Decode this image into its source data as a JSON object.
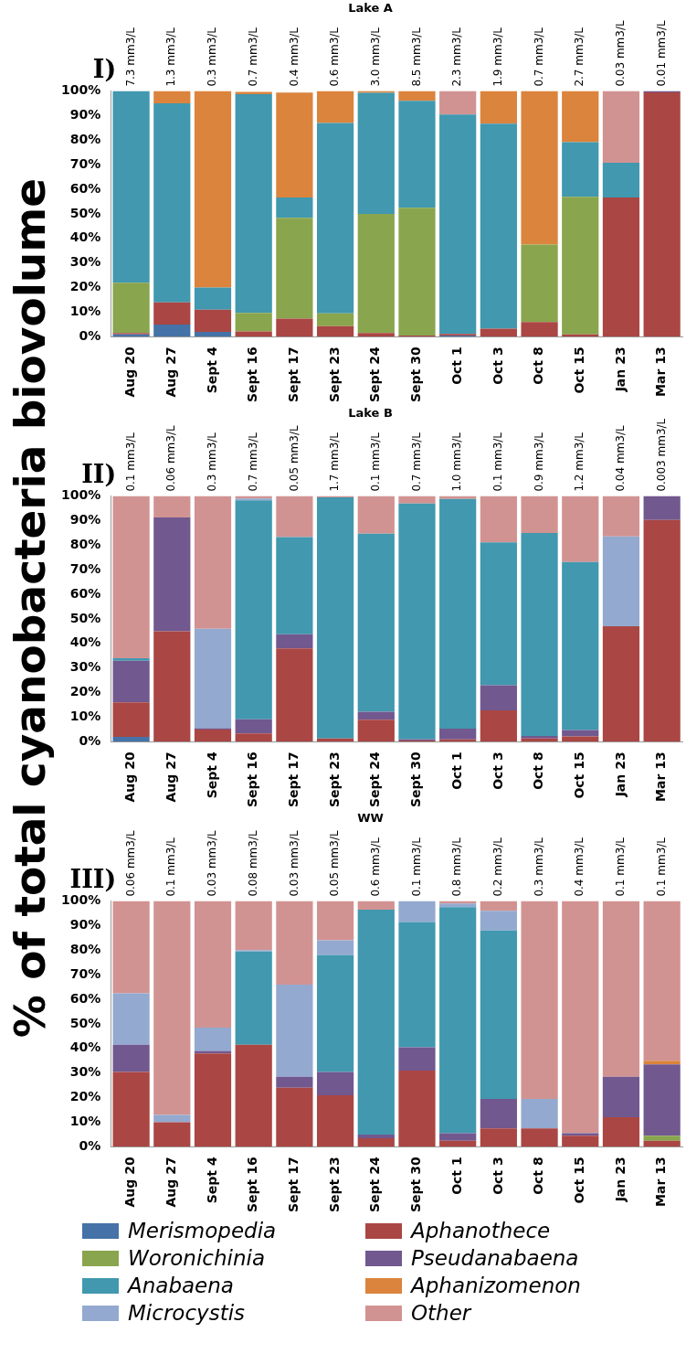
{
  "chart_data": [
    {
      "type": "bar",
      "title": "Lake A",
      "stacked": true,
      "legend": false,
      "categories": [
        "Aug 20",
        "Aug 27",
        "Sept 4",
        "Sept 16",
        "Sept 17",
        "Sept 23",
        "Sept 24",
        "Sept 30",
        "Oct 1",
        "Oct 3",
        "Oct 8",
        "Oct 15",
        "Jan 23",
        "Mar 13"
      ],
      "ylim": [
        0,
        100
      ],
      "yticks": [
        {
          "value": 0,
          "label": "0%"
        },
        {
          "value": 10,
          "label": "10%"
        },
        {
          "value": 20,
          "label": "20%"
        },
        {
          "value": 30,
          "label": "30%"
        },
        {
          "value": 40,
          "label": "40%"
        },
        {
          "value": 50,
          "label": "50%"
        },
        {
          "value": 60,
          "label": "60%"
        },
        {
          "value": 70,
          "label": "70%"
        },
        {
          "value": 80,
          "label": "80%"
        },
        {
          "value": 90,
          "label": "90%"
        },
        {
          "value": 100,
          "label": "100%"
        }
      ],
      "annotations": [
        "I)"
      ],
      "totals": [
        "7.3 mm3/L",
        "1.3 mm3/L",
        "0.3 mm3/L",
        "0.7 mm3/L",
        "0.4 mm3/L",
        "0.6 mm3/L",
        "3.0 mm3/L",
        "8.5 mm3/L",
        "2.3 mm3/L",
        "1.9 mm3/L",
        "0.7 mm3/L",
        "2.7 mm3/L",
        "0.03 mm3/L",
        "0.01 mm3/L"
      ],
      "series": [
        {
          "color": "#4572a7",
          "values": [
            1,
            5,
            2,
            null,
            null,
            0,
            0,
            0,
            0.5,
            0,
            0,
            0,
            0,
            0
          ]
        },
        {
          "color": "#aa4643",
          "values": [
            0.5,
            9,
            9,
            2.2,
            7.4,
            4.3,
            1.5,
            0.5,
            0.7,
            3.3,
            6,
            1,
            56.7,
            99.5
          ]
        },
        {
          "color": "#89a54e",
          "values": [
            20.5,
            0,
            0,
            7.5,
            41,
            5.2,
            48.5,
            52,
            0,
            0,
            31.5,
            56,
            0,
            0
          ]
        },
        {
          "color": "#71588f",
          "values": [
            0,
            0,
            0,
            0,
            0,
            0,
            0,
            0,
            0,
            0,
            0,
            0,
            0,
            0.5
          ]
        },
        {
          "color": "#4198af",
          "values": [
            78,
            81,
            9,
            89,
            8.3,
            77.5,
            49.3,
            43.5,
            89.3,
            83.4,
            0,
            22.2,
            14.1,
            0
          ]
        },
        {
          "color": "#db843d",
          "values": [
            0,
            5,
            80,
            1,
            42.7,
            13,
            0.7,
            4,
            0,
            13.3,
            62.5,
            20.8,
            0,
            0
          ]
        },
        {
          "color": "#93a9cf",
          "values": [
            0,
            0,
            0,
            0,
            0,
            0,
            0,
            0,
            0,
            0,
            0,
            0,
            0,
            0
          ]
        },
        {
          "color": "#d19392",
          "values": [
            0,
            0,
            0,
            0,
            null,
            0,
            0,
            0,
            9.5,
            0,
            0,
            0,
            29.2,
            0
          ]
        }
      ]
    },
    {
      "type": "bar",
      "title": "Lake B",
      "stacked": true,
      "legend": false,
      "ylabel": "% of total cyanobacteria biovolume",
      "categories": [
        "Aug 20",
        "Aug 27",
        "Sept 4",
        "Sept 16",
        "Sept 17",
        "Sept 23",
        "Sept 24",
        "Sept 30",
        "Oct 1",
        "Oct 3",
        "Oct 8",
        "Oct 15",
        "Jan 23",
        "Mar 13"
      ],
      "ylim": [
        0,
        100
      ],
      "yticks": [
        {
          "value": 0,
          "label": "0%"
        },
        {
          "value": 10,
          "label": "10%"
        },
        {
          "value": 20,
          "label": "20%"
        },
        {
          "value": 30,
          "label": "30%"
        },
        {
          "value": 40,
          "label": "40%"
        },
        {
          "value": 50,
          "label": "50%"
        },
        {
          "value": 60,
          "label": "60%"
        },
        {
          "value": 70,
          "label": "70%"
        },
        {
          "value": 80,
          "label": "80%"
        },
        {
          "value": 90,
          "label": "90%"
        },
        {
          "value": 100,
          "label": "100%"
        }
      ],
      "annotations": [
        "II)"
      ],
      "totals": [
        "0.1 mm3/L",
        "0.06 mm3/L",
        "0.3 mm3/L",
        "0.7 mm3/L",
        "0.05 mm3/L",
        "1.7 mm3/L",
        "0.1 mm3/L",
        "0.7 mm3/L",
        "1.0 mm3/L",
        "0.1 mm3/L",
        "0.9 mm3/L",
        "1.2 mm3/L",
        "0.04 mm3/L",
        "0.003 mm3/L"
      ],
      "series": [
        {
          "color": "#4572a7",
          "values": [
            2,
            0,
            0,
            0,
            0,
            0,
            0,
            0,
            0,
            0,
            0,
            0,
            0,
            0
          ]
        },
        {
          "color": "#aa4643",
          "values": [
            14,
            45,
            5,
            3.4,
            38,
            1.3,
            9,
            0.5,
            1,
            12.8,
            1.3,
            2.2,
            47,
            90.3
          ]
        },
        {
          "color": "#89a54e",
          "values": [
            0,
            0,
            0,
            0,
            0,
            0,
            0,
            0,
            0,
            0,
            0,
            0,
            0,
            0
          ]
        },
        {
          "color": "#71588f",
          "values": [
            17,
            46.3,
            0.5,
            5.8,
            5.8,
            0,
            3.2,
            0.6,
            4.3,
            10.2,
            1.1,
            2.6,
            0,
            9.7
          ]
        },
        {
          "color": "#4198af",
          "values": [
            1,
            0,
            0,
            89.1,
            39.5,
            98.2,
            72.5,
            95.9,
            93.5,
            58.2,
            82.6,
            68.4,
            0,
            0
          ]
        },
        {
          "color": "#db843d",
          "values": [
            0,
            0,
            0,
            0,
            0,
            0,
            0,
            0,
            0,
            0,
            0,
            0,
            0,
            0
          ]
        },
        {
          "color": "#93a9cf",
          "values": [
            0,
            0,
            40.5,
            0.7,
            0,
            0,
            0,
            0,
            0,
            0,
            0,
            0,
            36.6,
            0
          ]
        },
        {
          "color": "#d19392",
          "values": [
            66,
            8.7,
            54,
            1,
            16.7,
            0.5,
            15.3,
            3,
            1.2,
            18.8,
            15,
            26.8,
            16.4,
            0
          ]
        }
      ]
    },
    {
      "type": "bar",
      "title": "WW",
      "stacked": true,
      "legend": "bottom",
      "categories": [
        "Aug 20",
        "Aug 27",
        "Sept 4",
        "Sept 16",
        "Sept 17",
        "Sept 23",
        "Sept 24",
        "Sept 30",
        "Oct 1",
        "Oct 3",
        "Oct 8",
        "Oct 15",
        "Jan 23",
        "Mar 13"
      ],
      "ylim": [
        0,
        100
      ],
      "yticks": [
        {
          "value": 0,
          "label": "0%"
        },
        {
          "value": 10,
          "label": "10%"
        },
        {
          "value": 20,
          "label": "20%"
        },
        {
          "value": 30,
          "label": "30%"
        },
        {
          "value": 40,
          "label": "40%"
        },
        {
          "value": 50,
          "label": "50%"
        },
        {
          "value": 60,
          "label": "60%"
        },
        {
          "value": 70,
          "label": "70%"
        },
        {
          "value": 80,
          "label": "80%"
        },
        {
          "value": 90,
          "label": "90%"
        },
        {
          "value": 100,
          "label": "100%"
        }
      ],
      "annotations": [
        "III)"
      ],
      "totals": [
        "0.06 mm3/L",
        "0.1 mm3/L",
        "0.03 mm3/L",
        "0.08 mm3/L",
        "0.03 mm3/L",
        "0.05 mm3/L",
        "0.6 mm3/L",
        "0.1 mm3/L",
        "0.8 mm3/L",
        "0.2 mm3/L",
        "0.3 mm3/L",
        "0.4 mm3/L",
        "0.1 mm3/L",
        "0.1 mm3/L"
      ],
      "series": [
        {
          "name": "Merismopedia",
          "color": "#4572a7",
          "values": [
            0,
            0,
            0,
            0,
            0,
            0,
            0,
            0,
            0,
            0,
            0,
            0,
            0,
            0
          ]
        },
        {
          "name": "Aphanothece",
          "color": "#aa4643",
          "values": [
            30.5,
            10,
            38,
            41.5,
            24,
            21,
            3.5,
            31,
            2.5,
            7.5,
            7.5,
            4.5,
            12,
            2.5
          ]
        },
        {
          "name": "Woronichinia",
          "color": "#89a54e",
          "values": [
            0,
            0,
            0,
            0,
            0,
            0,
            0,
            0,
            0,
            0,
            0,
            0,
            0,
            2
          ]
        },
        {
          "name": "Pseudanabaena",
          "color": "#71588f",
          "values": [
            11,
            0,
            1,
            0,
            4.5,
            9.5,
            1.5,
            9.5,
            3,
            12,
            0,
            1,
            16.5,
            29
          ]
        },
        {
          "name": "Anabaena",
          "color": "#4198af",
          "values": [
            0,
            0,
            0,
            38,
            0,
            47.5,
            91.5,
            51,
            92,
            68.5,
            0,
            0,
            0,
            0
          ]
        },
        {
          "name": "Aphanizomenon",
          "color": "#db843d",
          "values": [
            0,
            0,
            0,
            0,
            0,
            0,
            0,
            0,
            0,
            0,
            0,
            0,
            0,
            1.5
          ]
        },
        {
          "name": "Microcystis",
          "color": "#93a9cf",
          "values": [
            21,
            3,
            9.5,
            0.5,
            37.5,
            6,
            0,
            8.5,
            1.5,
            8,
            12,
            0,
            0,
            0
          ]
        },
        {
          "name": "Other",
          "color": "#d19392",
          "values": [
            37.5,
            87,
            51.5,
            20,
            34,
            16,
            3.5,
            0,
            1,
            4,
            80.5,
            94.5,
            71.5,
            65
          ]
        }
      ]
    }
  ]
}
